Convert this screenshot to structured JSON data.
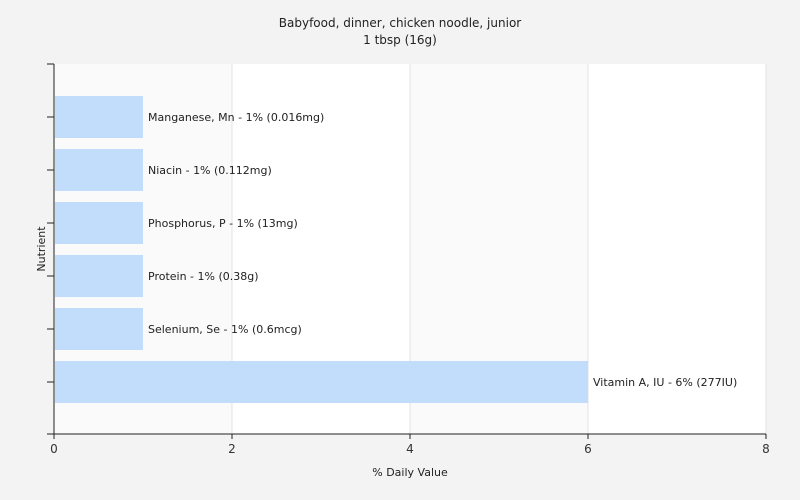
{
  "chart_data": {
    "type": "bar",
    "orientation": "horizontal",
    "title": "Babyfood, dinner, chicken noodle, junior",
    "subtitle": "1 tbsp (16g)",
    "xlabel": "% Daily Value",
    "ylabel": "Nutrient",
    "xlim": [
      0,
      8
    ],
    "xticks": [
      "0",
      "2",
      "4",
      "6",
      "8"
    ],
    "grid": true,
    "categories": [
      "Manganese, Mn",
      "Niacin",
      "Phosphorus, P",
      "Protein",
      "Selenium, Se",
      "Vitamin A, IU"
    ],
    "values": [
      1,
      1,
      1,
      1,
      1,
      6
    ],
    "labels": [
      "Manganese, Mn - 1% (0.016mg)",
      "Niacin - 1% (0.112mg)",
      "Phosphorus, P - 1% (13mg)",
      "Protein - 1% (0.38g)",
      "Selenium, Se - 1% (0.6mcg)",
      "Vitamin A, IU - 6% (277IU)"
    ],
    "colors": {
      "bar": "#c2dcfc",
      "plot_background_band": "#fafafa",
      "plot_background": "#ffffff",
      "page_background": "#f3f3f3"
    }
  }
}
